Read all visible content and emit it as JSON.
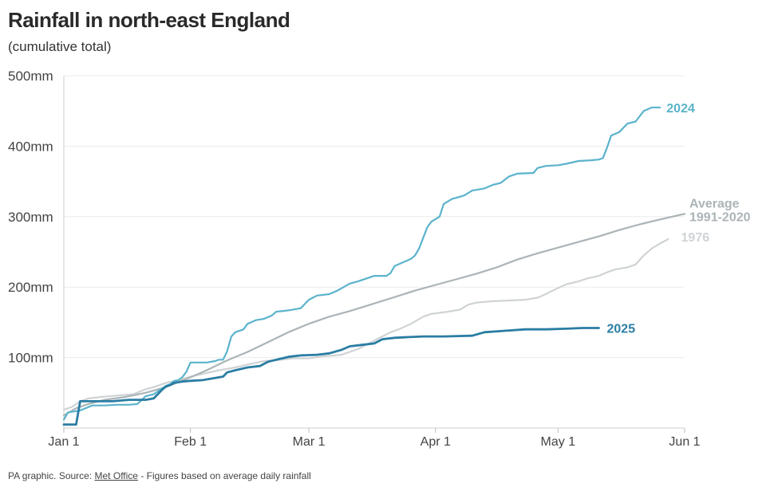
{
  "title": "Rainfall in north-east England",
  "subtitle": "(cumulative total)",
  "footer": {
    "prefix": "PA graphic. Source: ",
    "source_link": "Met Office",
    "suffix": " - Figures based on average daily rainfall"
  },
  "chart_data": {
    "type": "line",
    "x_ticks": [
      "Jan 1",
      "Feb 1",
      "Mar 1",
      "Apr 1",
      "May 1",
      "Jun 1"
    ],
    "x_tick_days": [
      0,
      31,
      60,
      91,
      121,
      152
    ],
    "y_ticks": [
      "100mm",
      "200mm",
      "300mm",
      "400mm",
      "500mm"
    ],
    "y_tick_values": [
      100,
      200,
      300,
      400,
      500
    ],
    "ylim": [
      0,
      500
    ],
    "xlim_days": [
      0,
      152
    ],
    "grid": true,
    "series": [
      {
        "name": "2024",
        "label_lines": [
          "2024"
        ],
        "color": "#5bb3cc",
        "width": 2.2,
        "points": [
          [
            0,
            12
          ],
          [
            1,
            22
          ],
          [
            3,
            24
          ],
          [
            4,
            25
          ],
          [
            7,
            32
          ],
          [
            10,
            32
          ],
          [
            13,
            33
          ],
          [
            16,
            33
          ],
          [
            18,
            34
          ],
          [
            20,
            45
          ],
          [
            22,
            48
          ],
          [
            24,
            56
          ],
          [
            25,
            60
          ],
          [
            26,
            62
          ],
          [
            27,
            67
          ],
          [
            28,
            68
          ],
          [
            29,
            72
          ],
          [
            30,
            80
          ],
          [
            31,
            93
          ],
          [
            33,
            93
          ],
          [
            35,
            93
          ],
          [
            37,
            95
          ],
          [
            38,
            97
          ],
          [
            39,
            97
          ],
          [
            40,
            109
          ],
          [
            41,
            130
          ],
          [
            42,
            136
          ],
          [
            44,
            140
          ],
          [
            45,
            148
          ],
          [
            47,
            153
          ],
          [
            49,
            155
          ],
          [
            51,
            160
          ],
          [
            52,
            165
          ],
          [
            55,
            167
          ],
          [
            58,
            170
          ],
          [
            60,
            182
          ],
          [
            62,
            188
          ],
          [
            65,
            190
          ],
          [
            67,
            195
          ],
          [
            70,
            205
          ],
          [
            72,
            208
          ],
          [
            74,
            212
          ],
          [
            76,
            216
          ],
          [
            79,
            216
          ],
          [
            80,
            220
          ],
          [
            81,
            230
          ],
          [
            83,
            235
          ],
          [
            85,
            240
          ],
          [
            86,
            245
          ],
          [
            87,
            255
          ],
          [
            88,
            270
          ],
          [
            89,
            285
          ],
          [
            90,
            293
          ],
          [
            92,
            300
          ],
          [
            93,
            318
          ],
          [
            95,
            325
          ],
          [
            98,
            330
          ],
          [
            100,
            337
          ],
          [
            103,
            340
          ],
          [
            105,
            345
          ],
          [
            107,
            348
          ],
          [
            109,
            357
          ],
          [
            111,
            361
          ],
          [
            115,
            362
          ],
          [
            116,
            369
          ],
          [
            118,
            372
          ],
          [
            121,
            373
          ],
          [
            123,
            375
          ],
          [
            126,
            379
          ],
          [
            129,
            380
          ],
          [
            131,
            381
          ],
          [
            132,
            383
          ],
          [
            133,
            398
          ],
          [
            134,
            415
          ],
          [
            136,
            420
          ],
          [
            138,
            432
          ],
          [
            140,
            435
          ],
          [
            142,
            450
          ],
          [
            144,
            455
          ],
          [
            146,
            455
          ]
        ]
      },
      {
        "name": "Average 1991-2020",
        "label_lines": [
          "Average",
          "1991-2020"
        ],
        "color": "#abb4b7",
        "width": 2.2,
        "points": [
          [
            0,
            18
          ],
          [
            3,
            28
          ],
          [
            6,
            34
          ],
          [
            10,
            40
          ],
          [
            15,
            44
          ],
          [
            20,
            50
          ],
          [
            25,
            58
          ],
          [
            31,
            72
          ],
          [
            35,
            82
          ],
          [
            40,
            96
          ],
          [
            45,
            108
          ],
          [
            50,
            122
          ],
          [
            55,
            136
          ],
          [
            60,
            148
          ],
          [
            65,
            158
          ],
          [
            70,
            166
          ],
          [
            75,
            175
          ],
          [
            80,
            184
          ],
          [
            86,
            195
          ],
          [
            91,
            203
          ],
          [
            96,
            211
          ],
          [
            101,
            219
          ],
          [
            106,
            228
          ],
          [
            111,
            239
          ],
          [
            116,
            248
          ],
          [
            121,
            256
          ],
          [
            126,
            264
          ],
          [
            131,
            272
          ],
          [
            136,
            281
          ],
          [
            141,
            289
          ],
          [
            146,
            296
          ],
          [
            152,
            304
          ]
        ]
      },
      {
        "name": "1976",
        "label_lines": [
          "1976"
        ],
        "color": "#cfd3d5",
        "width": 2.2,
        "points": [
          [
            0,
            26
          ],
          [
            2,
            30
          ],
          [
            4,
            38
          ],
          [
            6,
            42
          ],
          [
            9,
            44
          ],
          [
            13,
            46
          ],
          [
            17,
            48
          ],
          [
            20,
            55
          ],
          [
            22,
            58
          ],
          [
            25,
            64
          ],
          [
            28,
            68
          ],
          [
            31,
            73
          ],
          [
            35,
            78
          ],
          [
            38,
            82
          ],
          [
            42,
            86
          ],
          [
            45,
            90
          ],
          [
            49,
            95
          ],
          [
            52,
            96
          ],
          [
            56,
            99
          ],
          [
            60,
            99
          ],
          [
            64,
            102
          ],
          [
            68,
            104
          ],
          [
            72,
            112
          ],
          [
            74,
            118
          ],
          [
            76,
            124
          ],
          [
            78,
            130
          ],
          [
            80,
            136
          ],
          [
            82,
            140
          ],
          [
            85,
            148
          ],
          [
            88,
            158
          ],
          [
            90,
            162
          ],
          [
            94,
            165
          ],
          [
            97,
            168
          ],
          [
            99,
            175
          ],
          [
            101,
            178
          ],
          [
            105,
            180
          ],
          [
            109,
            181
          ],
          [
            113,
            182
          ],
          [
            116,
            185
          ],
          [
            118,
            190
          ],
          [
            120,
            196
          ],
          [
            123,
            204
          ],
          [
            126,
            208
          ],
          [
            128,
            212
          ],
          [
            131,
            216
          ],
          [
            133,
            221
          ],
          [
            135,
            225
          ],
          [
            138,
            228
          ],
          [
            140,
            232
          ],
          [
            142,
            245
          ],
          [
            144,
            255
          ],
          [
            146,
            262
          ],
          [
            148,
            268
          ]
        ]
      },
      {
        "name": "2025",
        "label_lines": [
          "2025"
        ],
        "color": "#2a7da3",
        "width": 2.8,
        "points": [
          [
            0,
            5
          ],
          [
            2,
            5
          ],
          [
            3,
            5
          ],
          [
            4,
            38
          ],
          [
            8,
            38
          ],
          [
            12,
            38
          ],
          [
            16,
            40
          ],
          [
            20,
            40
          ],
          [
            22,
            42
          ],
          [
            24,
            54
          ],
          [
            25,
            59
          ],
          [
            26,
            61
          ],
          [
            27,
            64
          ],
          [
            29,
            66
          ],
          [
            31,
            67
          ],
          [
            34,
            68
          ],
          [
            37,
            71
          ],
          [
            39,
            73
          ],
          [
            40,
            79
          ],
          [
            42,
            82
          ],
          [
            45,
            86
          ],
          [
            48,
            88
          ],
          [
            50,
            94
          ],
          [
            52,
            97
          ],
          [
            55,
            101
          ],
          [
            58,
            103
          ],
          [
            62,
            104
          ],
          [
            65,
            106
          ],
          [
            68,
            111
          ],
          [
            70,
            116
          ],
          [
            73,
            118
          ],
          [
            76,
            120
          ],
          [
            78,
            126
          ],
          [
            81,
            128
          ],
          [
            84,
            129
          ],
          [
            88,
            130
          ],
          [
            93,
            130
          ],
          [
            100,
            131
          ],
          [
            103,
            136
          ],
          [
            108,
            138
          ],
          [
            113,
            140
          ],
          [
            118,
            140
          ],
          [
            123,
            141
          ],
          [
            127,
            142
          ],
          [
            131,
            142
          ]
        ]
      }
    ]
  }
}
